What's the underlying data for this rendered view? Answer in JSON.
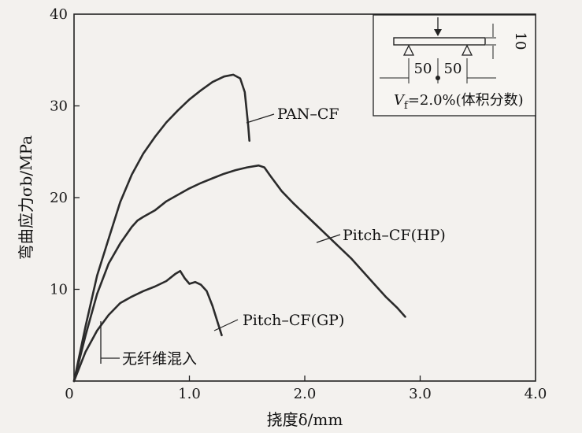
{
  "chart_data": {
    "type": "line",
    "xlabel": "挠度δ/mm",
    "ylabel": "弯曲应力σb/MPa",
    "xlim": [
      0,
      4.0
    ],
    "ylim": [
      0,
      40
    ],
    "x_ticks": [
      {
        "v": 0,
        "label": "0"
      },
      {
        "v": 1.0,
        "label": "1.0"
      },
      {
        "v": 2.0,
        "label": "2.0"
      },
      {
        "v": 3.0,
        "label": "3.0"
      },
      {
        "v": 4.0,
        "label": "4.0"
      }
    ],
    "y_ticks": [
      {
        "v": 0,
        "label": "0"
      },
      {
        "v": 10,
        "label": "10"
      },
      {
        "v": 20,
        "label": "20"
      },
      {
        "v": 30,
        "label": "30"
      },
      {
        "v": 40,
        "label": "40"
      }
    ],
    "series": [
      {
        "name": "PAN–CF",
        "points": [
          [
            0,
            0
          ],
          [
            0.1,
            6
          ],
          [
            0.2,
            11.5
          ],
          [
            0.3,
            15.5
          ],
          [
            0.4,
            19.5
          ],
          [
            0.5,
            22.5
          ],
          [
            0.6,
            24.8
          ],
          [
            0.7,
            26.6
          ],
          [
            0.8,
            28.2
          ],
          [
            0.9,
            29.5
          ],
          [
            1.0,
            30.7
          ],
          [
            1.1,
            31.7
          ],
          [
            1.2,
            32.6
          ],
          [
            1.3,
            33.2
          ],
          [
            1.38,
            33.4
          ],
          [
            1.44,
            33.0
          ],
          [
            1.48,
            31.5
          ],
          [
            1.5,
            29.0
          ],
          [
            1.51,
            27.8
          ],
          [
            1.52,
            26.2
          ]
        ]
      },
      {
        "name": "Pitch–CF(HP)",
        "points": [
          [
            0,
            0
          ],
          [
            0.1,
            5
          ],
          [
            0.2,
            9.5
          ],
          [
            0.3,
            12.8
          ],
          [
            0.4,
            15
          ],
          [
            0.5,
            16.8
          ],
          [
            0.55,
            17.5
          ],
          [
            0.6,
            17.9
          ],
          [
            0.7,
            18.6
          ],
          [
            0.8,
            19.6
          ],
          [
            0.9,
            20.3
          ],
          [
            1.0,
            21
          ],
          [
            1.1,
            21.6
          ],
          [
            1.2,
            22.1
          ],
          [
            1.3,
            22.6
          ],
          [
            1.4,
            23.0
          ],
          [
            1.5,
            23.3
          ],
          [
            1.6,
            23.5
          ],
          [
            1.65,
            23.3
          ],
          [
            1.7,
            22.4
          ],
          [
            1.8,
            20.7
          ],
          [
            1.9,
            19.4
          ],
          [
            2.0,
            18.2
          ],
          [
            2.1,
            17
          ],
          [
            2.2,
            15.8
          ],
          [
            2.3,
            14.6
          ],
          [
            2.4,
            13.4
          ],
          [
            2.5,
            12
          ],
          [
            2.6,
            10.6
          ],
          [
            2.7,
            9.2
          ],
          [
            2.8,
            8
          ],
          [
            2.87,
            7.0
          ]
        ]
      },
      {
        "name": "Pitch–CF(GP)",
        "points": [
          [
            0,
            0
          ],
          [
            0.1,
            3.2
          ],
          [
            0.2,
            5.5
          ],
          [
            0.3,
            7.2
          ],
          [
            0.4,
            8.5
          ],
          [
            0.5,
            9.2
          ],
          [
            0.6,
            9.8
          ],
          [
            0.7,
            10.3
          ],
          [
            0.8,
            10.9
          ],
          [
            0.88,
            11.7
          ],
          [
            0.92,
            12.0
          ],
          [
            0.96,
            11.2
          ],
          [
            1.0,
            10.6
          ],
          [
            1.05,
            10.8
          ],
          [
            1.1,
            10.5
          ],
          [
            1.15,
            9.8
          ],
          [
            1.2,
            8.2
          ],
          [
            1.25,
            6.2
          ],
          [
            1.28,
            5.0
          ]
        ]
      }
    ],
    "annotations": [
      "无纤维混入"
    ],
    "inset": {
      "dim_height": "10",
      "span_left": "50",
      "span_right": "50",
      "vf_symbol": "V",
      "vf_sub": "f",
      "vf_text": "=2.0%(体积分数)"
    },
    "grid": false,
    "line_color": "#2b2b2b"
  }
}
